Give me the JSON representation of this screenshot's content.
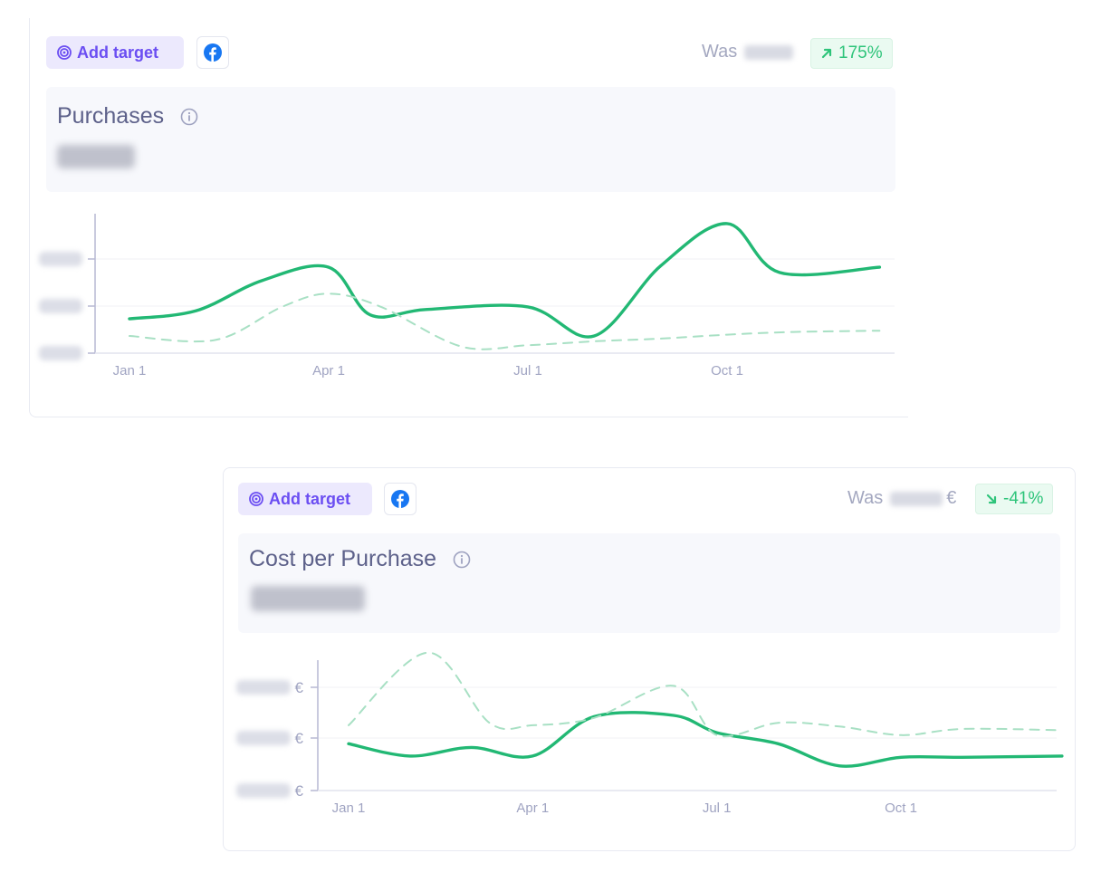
{
  "cards": [
    {
      "add_target_label": "Add target",
      "was_label": "Was",
      "was_currency": "",
      "badge": {
        "text": "175%",
        "direction": "up",
        "color": "#2ec47a"
      },
      "title": "Purchases",
      "icons": {
        "target": "target-icon",
        "facebook": "facebook-icon",
        "info": "info-icon",
        "arrow": "arrow-up-right-icon"
      },
      "y_tick_unit": ""
    },
    {
      "add_target_label": "Add target",
      "was_label": "Was",
      "was_currency": "€",
      "badge": {
        "text": "-41%",
        "direction": "down",
        "color": "#2ec47a"
      },
      "title": "Cost per Purchase",
      "icons": {
        "target": "target-icon",
        "facebook": "facebook-icon",
        "info": "info-icon",
        "arrow": "arrow-down-right-icon"
      },
      "y_tick_unit": "€"
    }
  ],
  "colors": {
    "accent_purple": "#6b4ef2",
    "line_green": "#22b874",
    "compare_green": "#a8e0c4",
    "facebook_blue": "#1877f2"
  },
  "chart_data": [
    {
      "type": "line",
      "title": "Purchases",
      "x_ticks": [
        "Jan 1",
        "Apr 1",
        "Jul 1",
        "Oct 1"
      ],
      "y_ticks_visible": false,
      "ylim": [
        0,
        100
      ],
      "series": [
        {
          "style": "solid",
          "x": [
            "Jan 1",
            "Feb 1",
            "Mar 1",
            "Apr 1",
            "Apr 20",
            "May 15",
            "Jul 1",
            "Aug 1",
            "Sep 1",
            "Oct 1",
            "Oct 25",
            "Dec 10"
          ],
          "values": [
            26,
            32,
            55,
            65,
            29,
            33,
            35,
            13,
            66,
            98,
            61,
            65
          ]
        },
        {
          "style": "dashed",
          "x": [
            "Jan 1",
            "Feb 10",
            "Mar 10",
            "Apr 1",
            "Apr 25",
            "Jun 1",
            "Jul 1",
            "Aug 1",
            "Sep 1",
            "Oct 1",
            "Nov 1",
            "Dec 10"
          ],
          "values": [
            13,
            10,
            35,
            45,
            35,
            5,
            6,
            9,
            11,
            14,
            16,
            17
          ]
        }
      ]
    },
    {
      "type": "line",
      "title": "Cost per Purchase",
      "x_ticks": [
        "Jan 1",
        "Apr 1",
        "Jul 1",
        "Oct 1"
      ],
      "y_ticks_visible": false,
      "ylim": [
        0,
        100
      ],
      "series": [
        {
          "style": "solid",
          "x": [
            "Jan 1",
            "Feb 1",
            "Mar 1",
            "Apr 1",
            "May 1",
            "Jun 10",
            "Jul 1",
            "Aug 1",
            "Sep 1",
            "Oct 1",
            "Nov 1",
            "Dec 20"
          ],
          "values": [
            38,
            28,
            35,
            28,
            60,
            61,
            47,
            38,
            20,
            27,
            27,
            28
          ]
        },
        {
          "style": "dashed",
          "x": [
            "Jan 1",
            "Feb 10",
            "Mar 10",
            "Apr 1",
            "May 1",
            "Jun 10",
            "Jul 1",
            "Aug 1",
            "Sep 1",
            "Oct 1",
            "Nov 1",
            "Dec 20"
          ],
          "values": [
            53,
            112,
            55,
            53,
            59,
            85,
            45,
            55,
            52,
            45,
            50,
            49
          ]
        }
      ]
    }
  ]
}
